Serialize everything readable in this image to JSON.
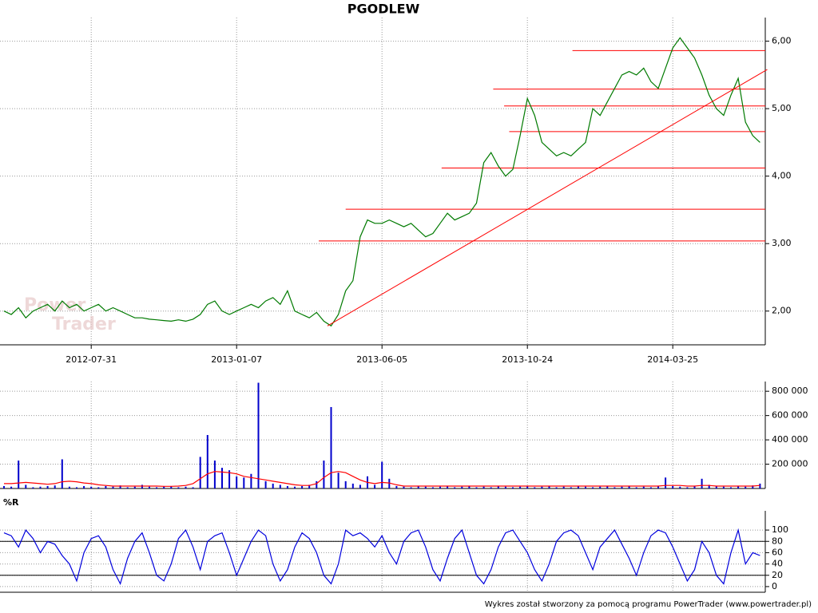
{
  "chart_data": [
    {
      "type": "line",
      "title": "PGODLEW",
      "watermark": [
        "Power",
        "Trader"
      ],
      "color": "#007a00",
      "categories": [
        null,
        null,
        null,
        null,
        null,
        null,
        null,
        null,
        null,
        null,
        null,
        null,
        "2012-07-31",
        null,
        null,
        null,
        null,
        null,
        null,
        null,
        null,
        null,
        null,
        null,
        null,
        null,
        null,
        null,
        null,
        null,
        null,
        null,
        "2013-01-07",
        null,
        null,
        null,
        null,
        null,
        null,
        null,
        null,
        null,
        null,
        null,
        null,
        null,
        null,
        null,
        null,
        null,
        null,
        null,
        "2013-06-05",
        null,
        null,
        null,
        null,
        null,
        null,
        null,
        null,
        null,
        null,
        null,
        null,
        null,
        null,
        null,
        null,
        null,
        null,
        null,
        "2013-10-24",
        null,
        null,
        null,
        null,
        null,
        null,
        null,
        null,
        null,
        null,
        null,
        null,
        null,
        null,
        null,
        null,
        null,
        null,
        null,
        "2014-03-25",
        null,
        null,
        null,
        null,
        null,
        null,
        null,
        null,
        null,
        null,
        null,
        null
      ],
      "values": [
        2.0,
        1.95,
        2.05,
        1.9,
        2.0,
        2.05,
        2.1,
        2.0,
        2.15,
        2.05,
        2.1,
        2.0,
        2.05,
        2.1,
        2.0,
        2.05,
        2.0,
        1.95,
        1.9,
        1.9,
        1.88,
        1.87,
        1.86,
        1.85,
        1.87,
        1.85,
        1.88,
        1.95,
        2.1,
        2.15,
        2.0,
        1.95,
        2.0,
        2.05,
        2.1,
        2.05,
        2.15,
        2.2,
        2.1,
        2.3,
        2.0,
        1.95,
        1.9,
        1.98,
        1.85,
        1.78,
        1.95,
        2.3,
        2.45,
        3.1,
        3.35,
        3.3,
        3.3,
        3.35,
        3.3,
        3.25,
        3.3,
        3.2,
        3.1,
        3.15,
        3.3,
        3.45,
        3.35,
        3.4,
        3.45,
        3.6,
        4.2,
        4.35,
        4.15,
        4.0,
        4.1,
        4.6,
        5.15,
        4.9,
        4.5,
        4.4,
        4.3,
        4.35,
        4.3,
        4.4,
        4.5,
        5.0,
        4.9,
        5.1,
        5.3,
        5.5,
        5.55,
        5.5,
        5.6,
        5.4,
        5.3,
        5.6,
        5.9,
        6.05,
        5.9,
        5.75,
        5.5,
        5.2,
        5.0,
        4.9,
        5.2,
        5.45,
        4.8,
        4.6,
        4.5
      ],
      "ylim": [
        1.5,
        6.35
      ],
      "yticks": [
        {
          "value": 2,
          "label": "2,00"
        },
        {
          "value": 3,
          "label": "3,00"
        },
        {
          "value": 4,
          "label": "4,00"
        },
        {
          "value": 5,
          "label": "5,00"
        },
        {
          "value": 6,
          "label": "6,00"
        }
      ],
      "hlines": [
        {
          "y": 3.04,
          "x0": 43.3
        },
        {
          "y": 3.51,
          "x0": 47.0
        },
        {
          "y": 4.12,
          "x0": 60.2
        },
        {
          "y": 4.66,
          "x0": 69.5
        },
        {
          "y": 5.04,
          "x0": 68.8
        },
        {
          "y": 5.29,
          "x0": 67.3
        },
        {
          "y": 5.86,
          "x0": 78.2
        }
      ],
      "line_color": "#ff0000",
      "trendline": {
        "x": [
          44.5,
          105
        ],
        "y": [
          1.78,
          5.58
        ]
      }
    },
    {
      "type": "bar",
      "series": [
        {
          "type": "bar",
          "color": "#0000cc",
          "values": [
            20000,
            15000,
            230000,
            30000,
            10000,
            15000,
            20000,
            25000,
            240000,
            15000,
            10000,
            20000,
            15000,
            10000,
            20000,
            15000,
            25000,
            10000,
            15000,
            30000,
            15000,
            10000,
            15000,
            20000,
            10000,
            15000,
            10000,
            260000,
            440000,
            230000,
            170000,
            150000,
            100000,
            90000,
            120000,
            870000,
            60000,
            40000,
            30000,
            20000,
            15000,
            20000,
            30000,
            60000,
            230000,
            670000,
            130000,
            60000,
            40000,
            30000,
            100000,
            30000,
            220000,
            80000,
            20000,
            15000,
            10000,
            20000,
            15000,
            10000,
            15000,
            20000,
            10000,
            15000,
            20000,
            10000,
            15000,
            10000,
            20000,
            15000,
            10000,
            15000,
            20000,
            10000,
            15000,
            20000,
            10000,
            15000,
            10000,
            20000,
            15000,
            10000,
            15000,
            20000,
            10000,
            15000,
            20000,
            10000,
            15000,
            10000,
            20000,
            90000,
            20000,
            15000,
            10000,
            20000,
            80000,
            30000,
            20000,
            15000,
            10000,
            20000,
            15000,
            25000,
            40000
          ]
        },
        {
          "type": "line",
          "color": "#ff0000",
          "values": [
            40000,
            40000,
            45000,
            50000,
            45000,
            40000,
            35000,
            40000,
            55000,
            60000,
            55000,
            45000,
            40000,
            30000,
            25000,
            20000,
            20000,
            20000,
            20000,
            20000,
            20000,
            20000,
            18000,
            18000,
            20000,
            25000,
            40000,
            80000,
            120000,
            140000,
            135000,
            130000,
            120000,
            100000,
            90000,
            80000,
            70000,
            60000,
            50000,
            40000,
            30000,
            25000,
            25000,
            40000,
            90000,
            130000,
            140000,
            130000,
            100000,
            70000,
            50000,
            40000,
            50000,
            45000,
            30000,
            20000,
            20000,
            20000,
            20000,
            20000,
            20000,
            20000,
            20000,
            20000,
            20000,
            20000,
            20000,
            20000,
            20000,
            20000,
            20000,
            20000,
            20000,
            20000,
            20000,
            20000,
            20000,
            20000,
            20000,
            20000,
            20000,
            20000,
            20000,
            20000,
            20000,
            20000,
            20000,
            20000,
            20000,
            20000,
            20000,
            25000,
            25000,
            25000,
            20000,
            20000,
            25000,
            25000,
            20000,
            20000,
            20000,
            20000,
            20000,
            20000,
            25000
          ]
        }
      ],
      "ylim": [
        0,
        880000
      ],
      "yticks": [
        {
          "value": 200000,
          "label": "200 000"
        },
        {
          "value": 400000,
          "label": "400 000"
        },
        {
          "value": 600000,
          "label": "600 000"
        },
        {
          "value": 800000,
          "label": "800 000"
        }
      ]
    },
    {
      "type": "line",
      "title": "%R",
      "color": "#0000dd",
      "values": [
        95,
        90,
        70,
        100,
        85,
        60,
        80,
        75,
        55,
        40,
        10,
        60,
        85,
        90,
        70,
        30,
        5,
        50,
        80,
        95,
        60,
        20,
        10,
        40,
        85,
        100,
        70,
        30,
        80,
        90,
        95,
        60,
        20,
        50,
        80,
        100,
        90,
        40,
        10,
        30,
        70,
        95,
        85,
        60,
        20,
        5,
        40,
        100,
        90,
        95,
        85,
        70,
        90,
        60,
        40,
        80,
        95,
        100,
        70,
        30,
        10,
        50,
        85,
        100,
        60,
        20,
        5,
        30,
        70,
        95,
        100,
        80,
        60,
        30,
        10,
        40,
        80,
        95,
        100,
        90,
        60,
        30,
        70,
        85,
        100,
        75,
        50,
        20,
        60,
        90,
        100,
        95,
        70,
        40,
        10,
        30,
        80,
        60,
        20,
        5,
        60,
        100,
        40,
        60,
        55
      ],
      "ylim": [
        -10,
        134
      ],
      "yticks": [
        0,
        20,
        40,
        60,
        80,
        100
      ],
      "levels": [
        20,
        80
      ]
    }
  ],
  "footer": "Wykres został stworzony za pomocą programu PowerTrader (www.powertrader.pl)"
}
